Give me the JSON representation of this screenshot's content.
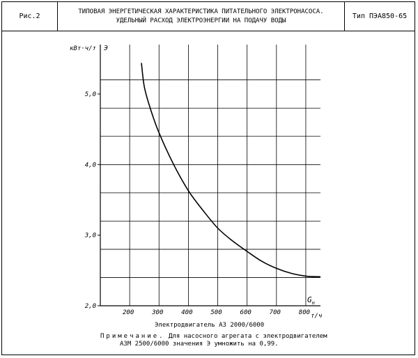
{
  "header": {
    "figure_label": "Рис.2",
    "title_line1": "ТИПОВАЯ ЭНЕРГЕТИЧЕСКАЯ ХАРАКТЕРИСТИКА ПИТАТЕЛЬНОГО ЭЛЕКТРОНАСОСА.",
    "title_line2": "УДЕЛЬНЫЙ РАСХОД ЭЛЕКТРОЭНЕРГИИ НА ПОДАЧУ ВОДЫ",
    "type_label": "Тип ПЭА850-65"
  },
  "chart_data": {
    "type": "line",
    "ylabel": "кВт·ч/т",
    "ylabel_symbol": "Э",
    "xlabel_symbol": "G",
    "xlabel_subscript": "н",
    "xlabel_unit": "т/ч",
    "xlim": [
      100,
      850
    ],
    "ylim": [
      2.0,
      5.7
    ],
    "x_ticks": [
      200,
      300,
      400,
      500,
      600,
      700,
      800
    ],
    "x_tick_labels": [
      "200",
      "300",
      "400",
      "500",
      "600",
      "700",
      "800"
    ],
    "y_ticks": [
      2.0,
      3.0,
      4.0,
      5.0
    ],
    "y_tick_labels": [
      "2,0",
      "3,0",
      "4,0",
      "5,0"
    ],
    "y_gridlines": [
      2.4,
      2.8,
      3.2,
      3.6,
      4.0,
      4.4,
      4.8,
      5.2
    ],
    "grid": true,
    "series": [
      {
        "x": [
          240,
          250,
          270,
          300,
          350,
          400,
          450,
          500,
          550,
          600,
          650,
          700,
          750,
          800,
          850
        ],
        "y": [
          5.44,
          5.1,
          4.8,
          4.45,
          4.0,
          3.63,
          3.35,
          3.1,
          2.92,
          2.77,
          2.63,
          2.53,
          2.46,
          2.42,
          2.41
        ]
      }
    ]
  },
  "notes": {
    "motor": "Электродвигатель АЗ 2000/6000",
    "note_title": "Примечание.",
    "note_text": " Для насосного агрегата с электродвигателем",
    "note_line2": "АЗМ 2500/6000 значения Э умножить на 0,99."
  }
}
